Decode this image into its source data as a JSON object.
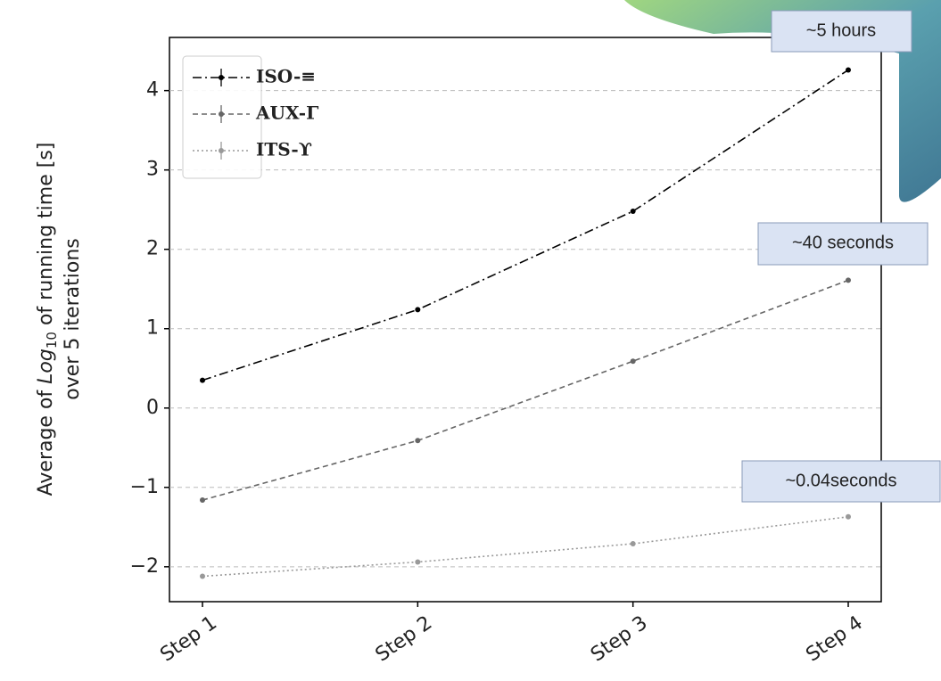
{
  "chart_data": {
    "type": "line",
    "ylabel": {
      "prefix": "Average of",
      "log": "Log",
      "subscript": "10",
      "suffix": "of running time [s]",
      "line2": "over 5 iterations"
    },
    "categories": [
      "Step 1",
      "Step 2",
      "Step 3",
      "Step 4"
    ],
    "series": [
      {
        "name": "ISO-≡",
        "color": "#000000",
        "dash": "10,4,2,4",
        "values": [
          0.35,
          1.24,
          2.48,
          4.26
        ]
      },
      {
        "name": "AUX-Γ",
        "color": "#666666",
        "dash": "6,4",
        "values": [
          -1.16,
          -0.41,
          0.59,
          1.61
        ]
      },
      {
        "name": "ITS-ϒ",
        "color": "#999999",
        "dash": "2,3",
        "values": [
          -2.12,
          -1.94,
          -1.71,
          -1.37
        ]
      }
    ],
    "ylim": [
      -2.44,
      4.67
    ],
    "yticks": [
      {
        "value": -2,
        "label": "−2"
      },
      {
        "value": -1,
        "label": "−1"
      },
      0,
      1,
      2,
      3,
      4
    ],
    "grid": true,
    "legend": "upper left",
    "annotations": [
      "~5 hours",
      "~40 seconds",
      "~0.04seconds"
    ]
  }
}
